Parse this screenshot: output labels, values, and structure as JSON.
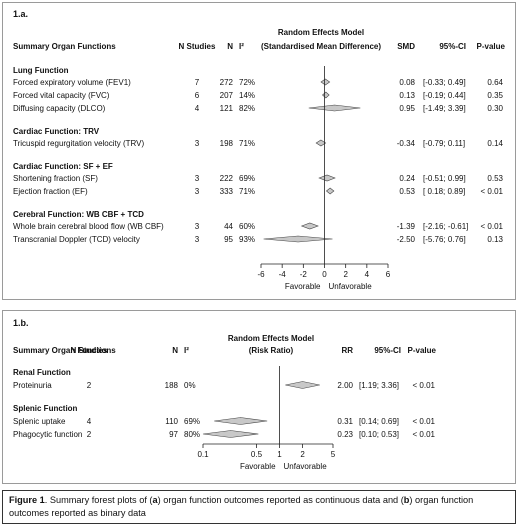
{
  "chart_data": [
    {
      "type": "forest",
      "panel_label": "1.a.",
      "header": {
        "col_outcome": "Summary Organ Functions",
        "col_n_studies": "N Studies",
        "col_n": "N",
        "col_i2": "I²",
        "model_title": "Random Effects Model",
        "model_subtitle": "(Standardised Mean Difference)",
        "col_effect": "SMD",
        "col_ci": "95%-CI",
        "col_p": "P-value"
      },
      "axis": {
        "xlim": [
          -6,
          6
        ],
        "ticks": [
          -6,
          -4,
          -2,
          0,
          2,
          4,
          6
        ],
        "tick_labels": [
          "-6",
          "-4",
          "-2",
          "0",
          "2",
          "4",
          "6"
        ],
        "label_left": "Favorable",
        "label_right": "Unfavorable",
        "scale": "linear"
      },
      "groups": [
        {
          "title": "Lung Function",
          "rows": [
            {
              "name": "Forced expiratory volume (FEV1)",
              "studies": "7",
              "n": "272",
              "i2": "72%",
              "est": 0.08,
              "lo": -0.33,
              "hi": 0.49,
              "effect": "0.08",
              "ci": "[-0.33; 0.49]",
              "p": "0.64"
            },
            {
              "name": "Forced vital capacity (FVC)",
              "studies": "6",
              "n": "207",
              "i2": "14%",
              "est": 0.13,
              "lo": -0.19,
              "hi": 0.44,
              "effect": "0.13",
              "ci": "[-0.19; 0.44]",
              "p": "0.35"
            },
            {
              "name": "Diffusing capacity (DLCO)",
              "studies": "4",
              "n": "121",
              "i2": "82%",
              "est": 0.95,
              "lo": -1.49,
              "hi": 3.39,
              "effect": "0.95",
              "ci": "[-1.49; 3.39]",
              "p": "0.30"
            }
          ]
        },
        {
          "title": "Cardiac Function: TRV",
          "rows": [
            {
              "name": "Tricuspid regurgitation velocity (TRV)",
              "studies": "3",
              "n": "198",
              "i2": "71%",
              "est": -0.34,
              "lo": -0.79,
              "hi": 0.11,
              "effect": "-0.34",
              "ci": "[-0.79; 0.11]",
              "p": "0.14"
            }
          ]
        },
        {
          "title": "Cardiac Function: SF + EF",
          "rows": [
            {
              "name": "Shortening fraction (SF)",
              "studies": "3",
              "n": "222",
              "i2": "69%",
              "est": 0.24,
              "lo": -0.51,
              "hi": 0.99,
              "effect": "0.24",
              "ci": "[-0.51; 0.99]",
              "p": "0.53"
            },
            {
              "name": "Ejection fraction (EF)",
              "studies": "3",
              "n": "333",
              "i2": "71%",
              "est": 0.53,
              "lo": 0.18,
              "hi": 0.89,
              "effect": "0.53",
              "ci": "[ 0.18; 0.89]",
              "p": "< 0.01"
            }
          ]
        },
        {
          "title": "Cerebral Function: WB CBF + TCD",
          "rows": [
            {
              "name": "Whole brain cerebral blood flow (WB CBF)",
              "studies": "3",
              "n": "44",
              "i2": "60%",
              "est": -1.39,
              "lo": -2.16,
              "hi": -0.61,
              "effect": "-1.39",
              "ci": "[-2.16; -0.61]",
              "p": "< 0.01"
            },
            {
              "name": "Transcranial Doppler (TCD) velocity",
              "studies": "3",
              "n": "95",
              "i2": "93%",
              "est": -2.5,
              "lo": -5.76,
              "hi": 0.76,
              "effect": "-2.50",
              "ci": "[-5.76; 0.76]",
              "p": "0.13"
            }
          ]
        }
      ]
    },
    {
      "type": "forest",
      "panel_label": "1.b.",
      "header": {
        "col_outcome": "Summary Organ Functions",
        "col_n_studies": "N Studies",
        "col_n": "N",
        "col_i2": "I²",
        "model_title": "Random Effects Model",
        "model_subtitle": "(Risk Ratio)",
        "col_effect": "RR",
        "col_ci": "95%-CI",
        "col_p": "P-value"
      },
      "axis": {
        "xlim": [
          0.1,
          5
        ],
        "ticks": [
          0.1,
          0.5,
          1,
          2,
          5
        ],
        "tick_labels": [
          "0.1",
          "0.5",
          "1",
          "2",
          "5"
        ],
        "label_left": "Favorable",
        "label_right": "Unfavorable",
        "scale": "log"
      },
      "groups": [
        {
          "title": "Renal Function",
          "rows": [
            {
              "name": "Proteinuria",
              "studies": "2",
              "n": "188",
              "i2": "0%",
              "est": 2.0,
              "lo": 1.19,
              "hi": 3.36,
              "effect": "2.00",
              "ci": "[1.19; 3.36]",
              "p": "< 0.01"
            }
          ]
        },
        {
          "title": "Splenic Function",
          "rows": [
            {
              "name": "Splenic uptake",
              "studies": "4",
              "n": "110",
              "i2": "69%",
              "est": 0.31,
              "lo": 0.14,
              "hi": 0.69,
              "effect": "0.31",
              "ci": "[0.14; 0.69]",
              "p": "< 0.01"
            },
            {
              "name": "Phagocytic function",
              "studies": "2",
              "n": "97",
              "i2": "80%",
              "est": 0.23,
              "lo": 0.1,
              "hi": 0.53,
              "effect": "0.23",
              "ci": "[0.10; 0.53]",
              "p": "< 0.01"
            }
          ]
        }
      ]
    }
  ],
  "caption": {
    "figure_label": "Figure 1",
    "text_1": ". Summary forest plots of (",
    "a": "a",
    "text_2": ") organ function outcomes reported as continuous data and (",
    "b": "b",
    "text_3": ") organ function outcomes reported as binary data"
  },
  "colors": {
    "diamond_fill": "#c8c8c8",
    "diamond_stroke": "#444444",
    "line": "#222222",
    "panel_border": "#9a9a9a"
  }
}
